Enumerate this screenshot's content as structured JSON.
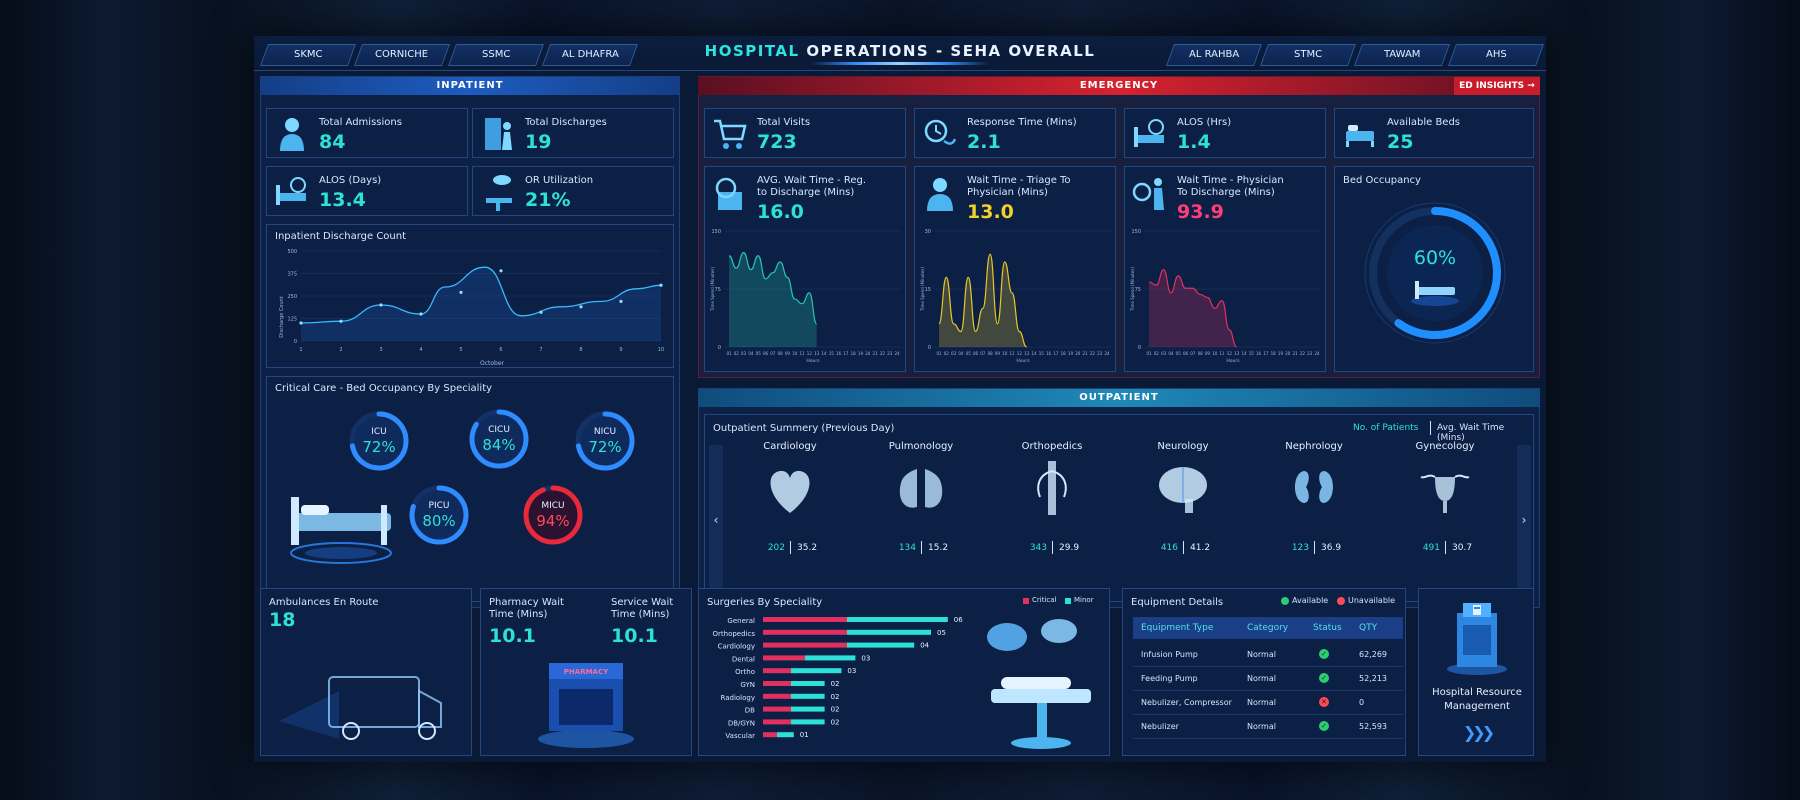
{
  "header": {
    "title_highlight": "HOSPITAL",
    "title_rest": "OPERATIONS - SEHA OVERALL",
    "left_tabs": [
      "SKMC",
      "CORNICHE",
      "SSMC",
      "AL DHAFRA"
    ],
    "right_tabs": [
      "AL RAHBA",
      "STMC",
      "TAWAM",
      "AHS"
    ]
  },
  "inpatient": {
    "header": "INPATIENT",
    "kpis": [
      {
        "label": "Total Admissions",
        "value": "84"
      },
      {
        "label": "Total Discharges",
        "value": "19"
      },
      {
        "label": "ALOS (Days)",
        "value": "13.4"
      },
      {
        "label": "OR Utilization",
        "value": "21%"
      }
    ],
    "discharge_chart": {
      "title": "Inpatient Discharge Count",
      "ylabel": "Discharge Count",
      "xlabel": "October",
      "yticks": [
        "500",
        "375",
        "250",
        "125",
        "0"
      ],
      "xticks": [
        "1",
        "2",
        "3",
        "4",
        "5",
        "6",
        "7",
        "8",
        "9",
        "10"
      ]
    },
    "critical_care": {
      "title": "Critical Care - Bed Occupancy By Speciality",
      "units": [
        {
          "name": "ICU",
          "value": "72%",
          "pct": 72
        },
        {
          "name": "CICU",
          "value": "84%",
          "pct": 84
        },
        {
          "name": "NICU",
          "value": "72%",
          "pct": 72
        },
        {
          "name": "PICU",
          "value": "80%",
          "pct": 80
        },
        {
          "name": "MICU",
          "value": "94%",
          "pct": 94
        }
      ]
    }
  },
  "emergency": {
    "header": "EMERGENCY",
    "insights_label": "ED INSIGHTS →",
    "kpis": [
      {
        "label": "Total Visits",
        "value": "723"
      },
      {
        "label": "Response Time (Mins)",
        "value": "2.1"
      },
      {
        "label": "ALOS (Hrs)",
        "value": "1.4"
      },
      {
        "label": "Available Beds",
        "value": "25"
      }
    ],
    "wait_cards": [
      {
        "label1": "AVG. Wait Time - Reg.",
        "label2": "to Discharge (Mins)",
        "value": "16.0",
        "ymax": "150",
        "ymid": "75",
        "ylabel": "Time Spend (Minutes)"
      },
      {
        "label1": "Wait Time - Triage To",
        "label2": "Physician (Mins)",
        "value": "13.0",
        "ymax": "30",
        "ymid": "15",
        "ylabel": "Time Spend (Minutes)"
      },
      {
        "label1": "Wait Time - Physician",
        "label2": "To Discharge (Mins)",
        "value": "93.9",
        "ymax": "150",
        "ymid": "75",
        "ylabel": "Time Spend (Minutes)"
      }
    ],
    "hours_label": "Hours",
    "hour_ticks": [
      "01",
      "02",
      "03",
      "04",
      "05",
      "06",
      "07",
      "08",
      "09",
      "10",
      "11",
      "12",
      "13",
      "14",
      "15",
      "16",
      "17",
      "18",
      "19",
      "20",
      "21",
      "22",
      "23",
      "24"
    ],
    "bed_occupancy": {
      "title": "Bed Occupancy",
      "value": "60%",
      "pct": 60
    }
  },
  "outpatient": {
    "header": "OUTPATIENT",
    "summary_title": "Outpatient Summery (Previous Day)",
    "toggle_patients": "No. of Patients",
    "toggle_wait": "Avg. Wait Time (Mins)",
    "specialities": [
      {
        "name": "Cardiology",
        "patients": "202",
        "wait": "35.2"
      },
      {
        "name": "Pulmonology",
        "patients": "134",
        "wait": "15.2"
      },
      {
        "name": "Orthopedics",
        "patients": "343",
        "wait": "29.9"
      },
      {
        "name": "Neurology",
        "patients": "416",
        "wait": "41.2"
      },
      {
        "name": "Nephrology",
        "patients": "123",
        "wait": "36.9"
      },
      {
        "name": "Gynecology",
        "patients": "491",
        "wait": "30.7"
      }
    ]
  },
  "ambulances": {
    "label": "Ambulances En Route",
    "value": "18"
  },
  "pharmacy": {
    "label1": "Pharmacy Wait",
    "label2": "Time (Mins)",
    "value": "10.1",
    "svc_label1": "Service Wait",
    "svc_label2": "Time (Mins)",
    "svc_value": "10.1",
    "sign": "PHARMACY"
  },
  "surgeries": {
    "title": "Surgeries By Speciality",
    "legend_critical": "Critical",
    "legend_minor": "Minor",
    "rows": [
      {
        "name": "General",
        "critical": 6,
        "minor": 6,
        "label": "06"
      },
      {
        "name": "Orthopedics",
        "critical": 6,
        "minor": 5,
        "label": "05"
      },
      {
        "name": "Cardiology",
        "critical": 6,
        "minor": 4,
        "label": "04"
      },
      {
        "name": "Dental",
        "critical": 3,
        "minor": 3,
        "label": "03"
      },
      {
        "name": "Ortho",
        "critical": 2,
        "minor": 3,
        "label": "03"
      },
      {
        "name": "GYN",
        "critical": 2,
        "minor": 2,
        "label": "02"
      },
      {
        "name": "Radiology",
        "critical": 2,
        "minor": 2,
        "label": "02"
      },
      {
        "name": "DB",
        "critical": 2,
        "minor": 2,
        "label": "02"
      },
      {
        "name": "DB/GYN",
        "critical": 2,
        "minor": 2,
        "label": "02"
      },
      {
        "name": "Vascular",
        "critical": 1,
        "minor": 1,
        "label": "01"
      }
    ]
  },
  "equipment": {
    "title": "Equipment Details",
    "legend_available": "Available",
    "legend_unavailable": "Unavailable",
    "columns": [
      "Equipment Type",
      "Category",
      "Status",
      "QTY"
    ],
    "rows": [
      {
        "type": "Infusion Pump",
        "category": "Normal",
        "available": true,
        "qty": "62,269"
      },
      {
        "type": "Feeding Pump",
        "category": "Normal",
        "available": true,
        "qty": "52,213"
      },
      {
        "type": "Nebulizer, Compressor",
        "category": "Normal",
        "available": false,
        "qty": "0"
      },
      {
        "type": "Nebulizer",
        "category": "Normal",
        "available": true,
        "qty": "52,593"
      }
    ]
  },
  "resource": {
    "label1": "Hospital Resource",
    "label2": "Management"
  }
}
